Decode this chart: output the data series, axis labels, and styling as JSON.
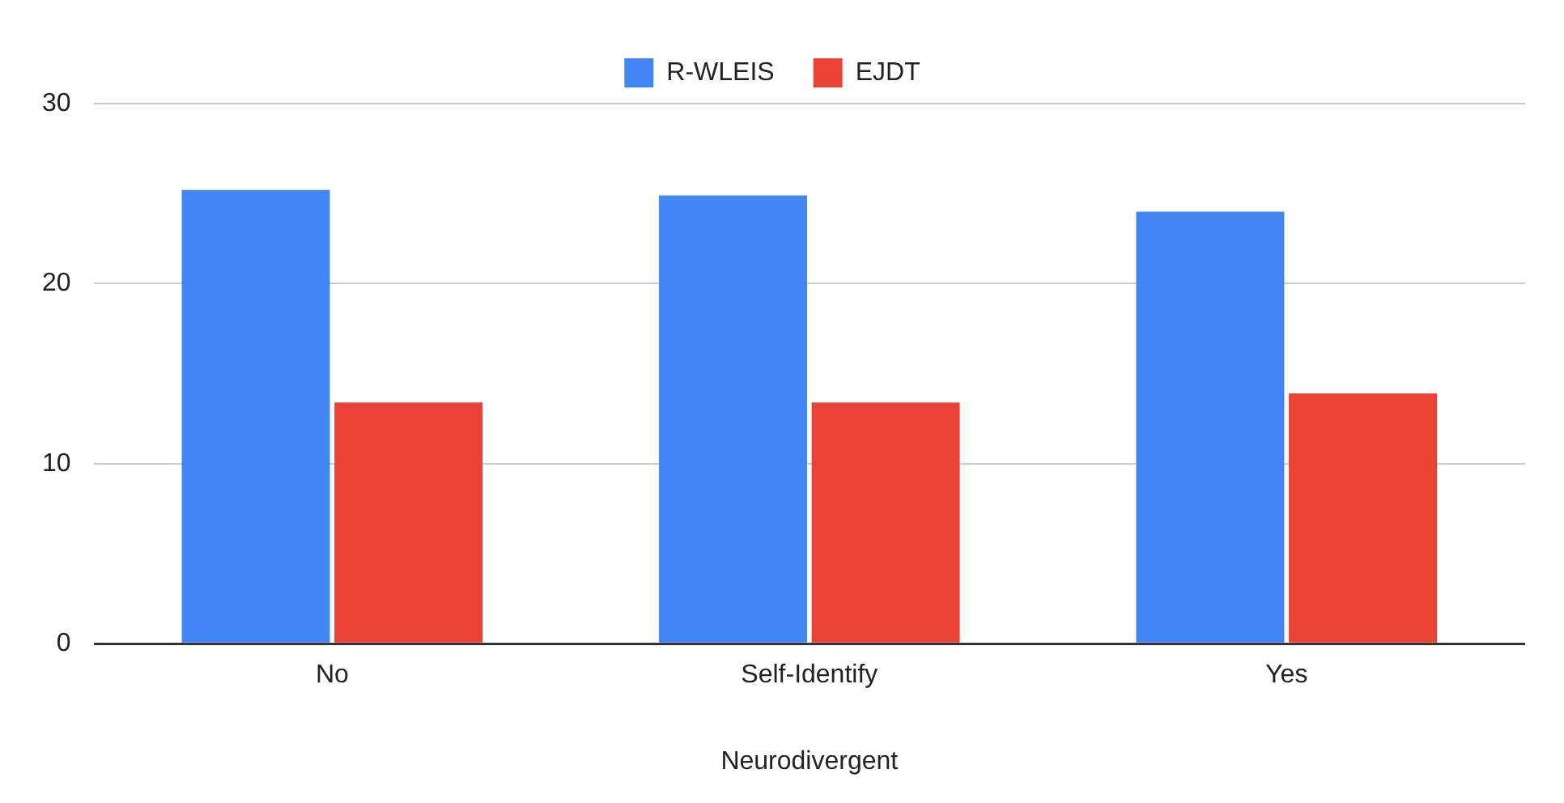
{
  "chart_data": {
    "type": "bar",
    "xlabel": "Neurodivergent",
    "categories": [
      "No",
      "Self-Identify",
      "Yes"
    ],
    "series": [
      {
        "name": "R-WLEIS",
        "color": "#4285f4",
        "values": [
          25.2,
          24.9,
          24.0
        ]
      },
      {
        "name": "EJDT",
        "color": "#ea4335",
        "values": [
          13.4,
          13.4,
          13.9
        ]
      }
    ],
    "ylim": [
      0,
      30
    ],
    "yticks": [
      0,
      10,
      20,
      30
    ],
    "grid": "y",
    "legend": "top"
  }
}
